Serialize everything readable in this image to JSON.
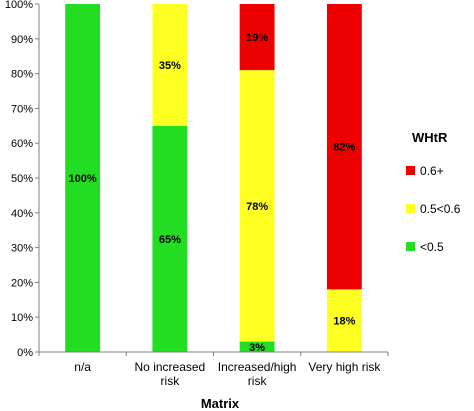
{
  "chart_data": {
    "type": "bar",
    "stacked": true,
    "percent": true,
    "categories": [
      "n/a",
      "No increased risk",
      "Increased/high risk",
      "Very high risk"
    ],
    "category_lines": [
      [
        "n/a"
      ],
      [
        "No increased",
        "risk"
      ],
      [
        "Increased/high",
        "risk"
      ],
      [
        "Very high risk"
      ]
    ],
    "series": [
      {
        "name": "<0.5",
        "color": "#22dd22",
        "values": [
          100,
          65,
          3,
          0
        ],
        "labels": [
          "100%",
          "65%",
          "3%",
          ""
        ]
      },
      {
        "name": "0.5<0.6",
        "color": "#ffff22",
        "values": [
          0,
          35,
          78,
          18
        ],
        "labels": [
          "",
          "35%",
          "78%",
          "18%"
        ]
      },
      {
        "name": "0.6+",
        "color": "#ee0000",
        "values": [
          0,
          0,
          19,
          82
        ],
        "labels": [
          "",
          "",
          "19%",
          "82%"
        ]
      }
    ],
    "yticks": [
      "0%",
      "10%",
      "20%",
      "30%",
      "40%",
      "50%",
      "60%",
      "70%",
      "80%",
      "90%",
      "100%"
    ],
    "ylim": [
      0,
      100
    ],
    "xlabel": "Matrix",
    "ylabel": "",
    "grid": false,
    "legend": {
      "title": "WHtR",
      "placement": "right",
      "order": [
        "0.6+",
        "0.5<0.6",
        "<0.5"
      ]
    }
  }
}
